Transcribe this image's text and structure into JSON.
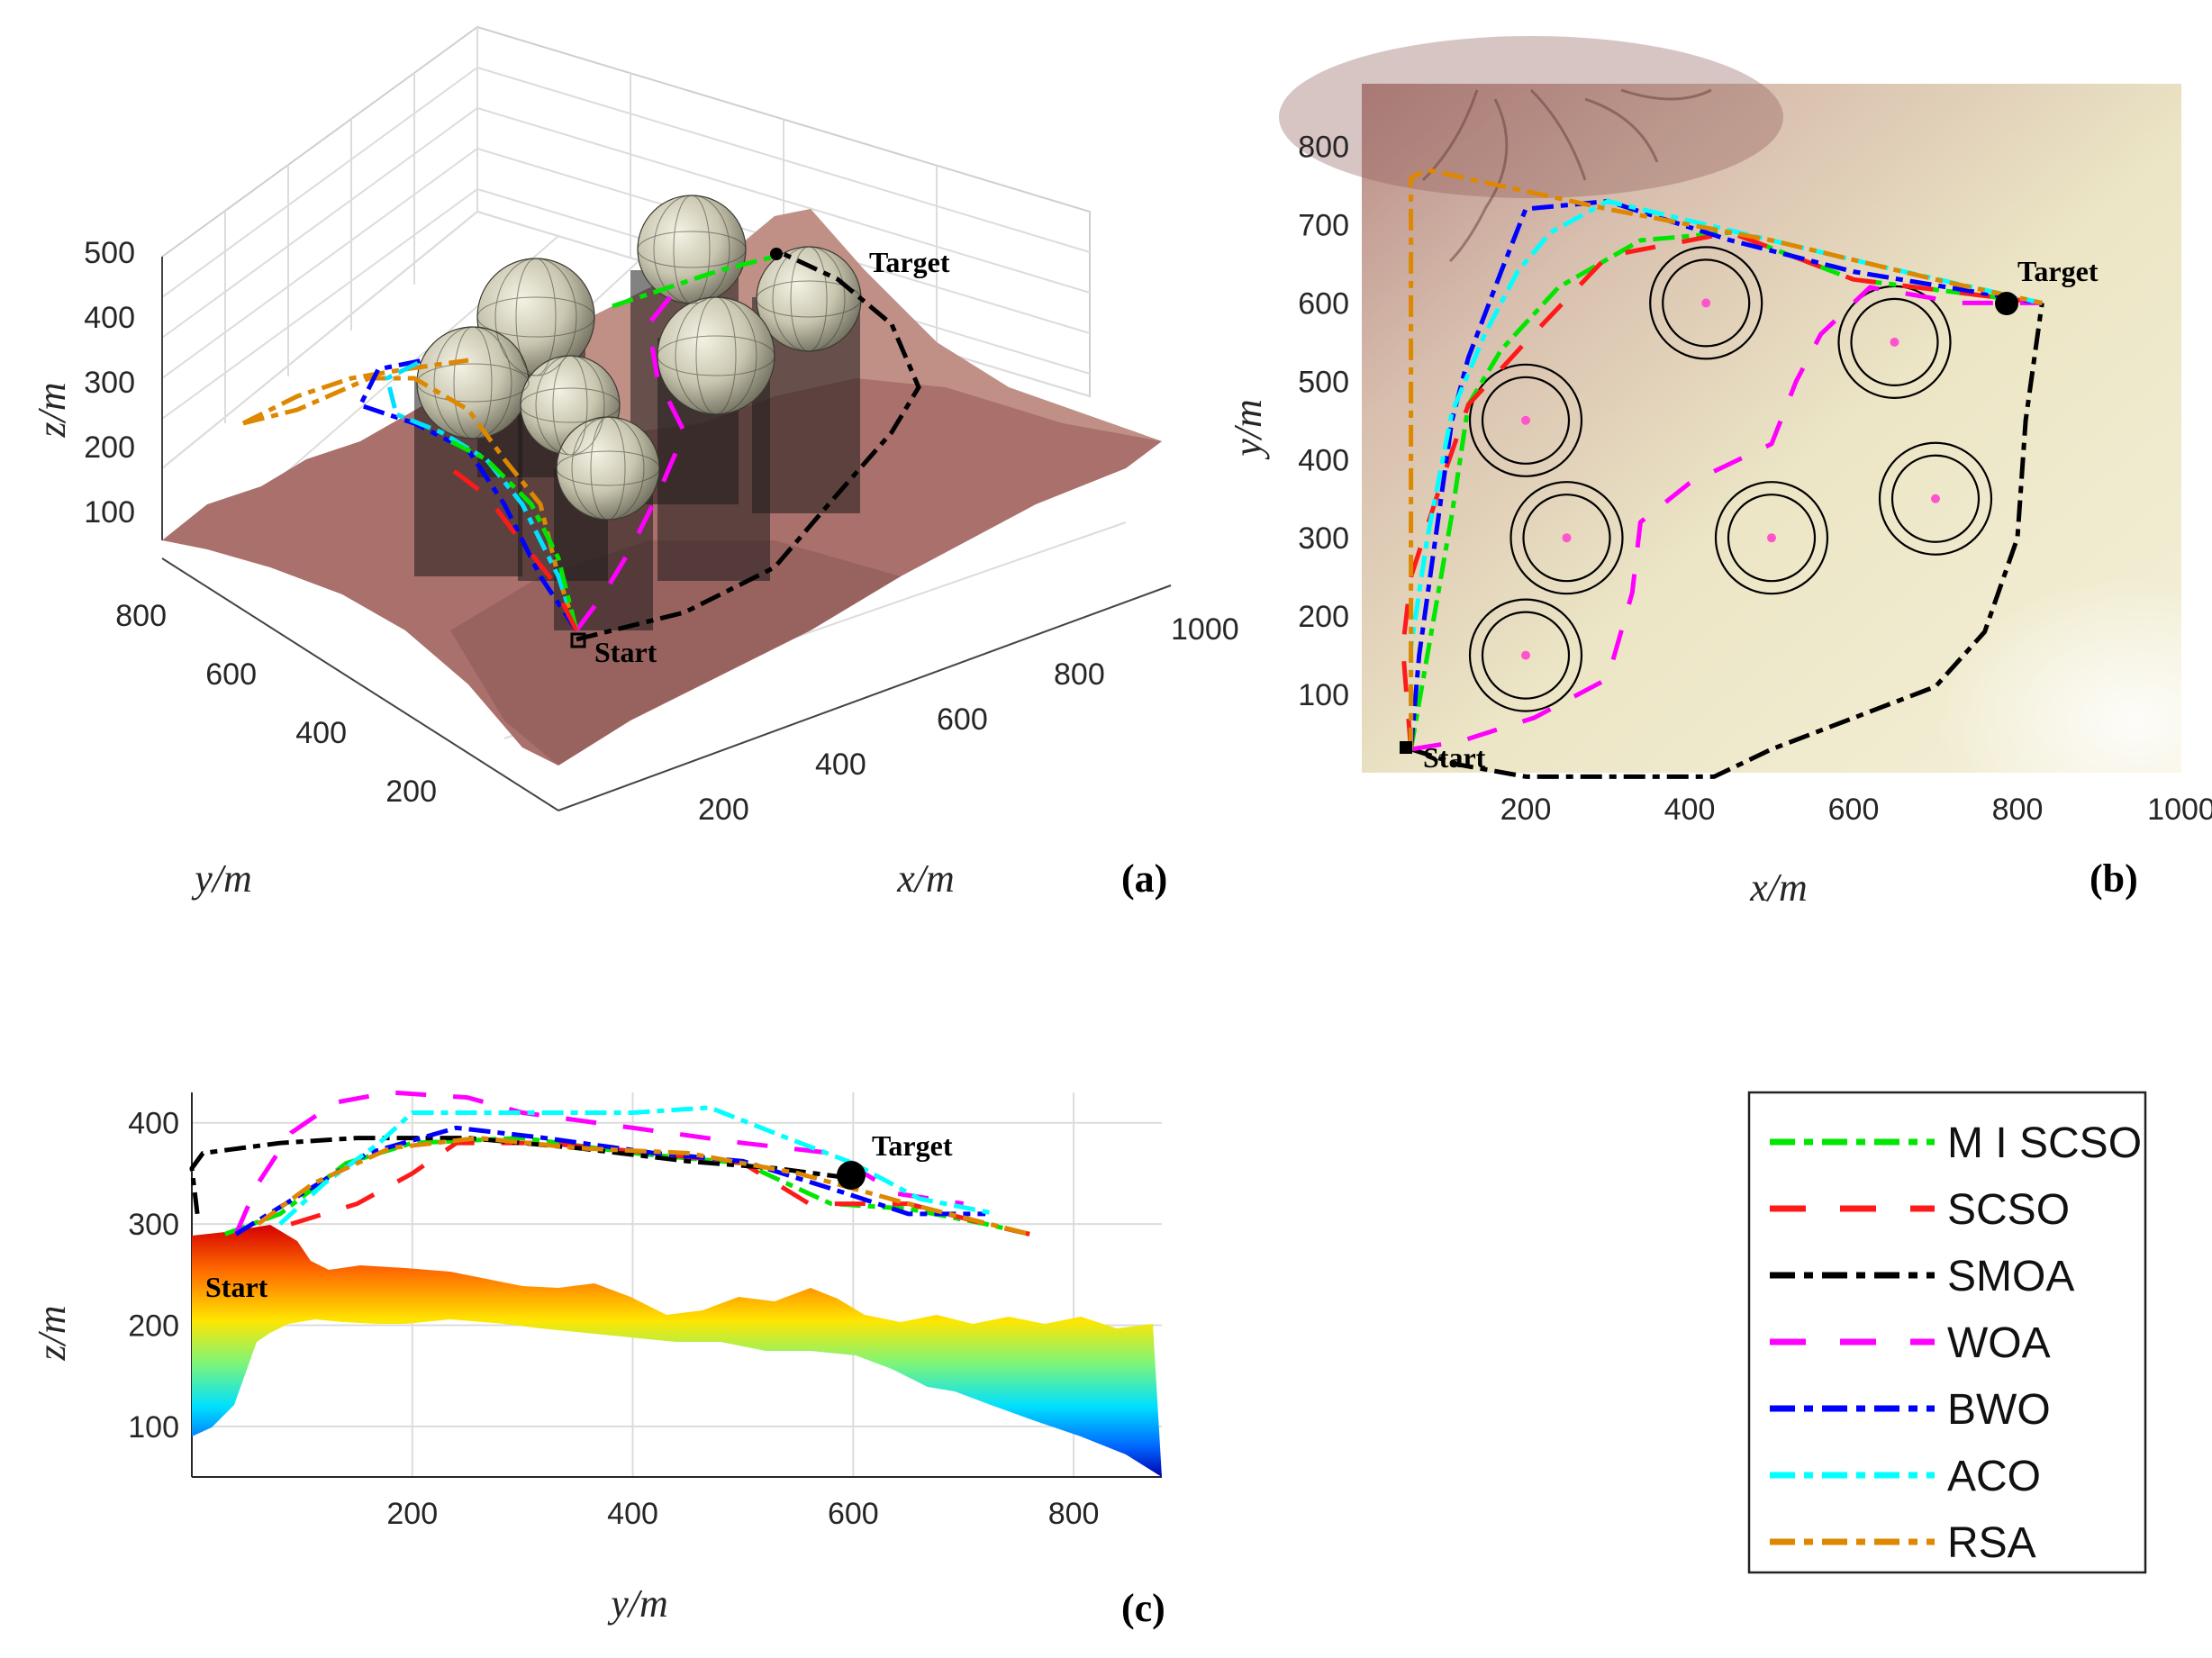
{
  "chart_data": [
    {
      "panel": "(a)",
      "type": "line",
      "view": "3d",
      "xlabel": "x/m",
      "ylabel": "y/m",
      "zlabel": "z/m",
      "x_ticks": [
        "200",
        "400",
        "600",
        "800",
        "1000"
      ],
      "y_ticks": [
        "200",
        "400",
        "600",
        "800"
      ],
      "z_ticks": [
        "100",
        "200",
        "300",
        "400",
        "500"
      ],
      "start_label": "Start",
      "target_label": "Target",
      "obstacles": 7
    },
    {
      "panel": "(b)",
      "type": "line",
      "view": "top",
      "xlabel": "x/m",
      "ylabel": "y/m",
      "xlim": [
        0,
        1000
      ],
      "ylim": [
        0,
        880
      ],
      "x_ticks": [
        200,
        400,
        600,
        800,
        1000
      ],
      "y_ticks": [
        100,
        200,
        300,
        400,
        500,
        600,
        700,
        800
      ],
      "start": [
        60,
        30
      ],
      "target": [
        830,
        600
      ],
      "start_label": "Start",
      "target_label": "Target",
      "obstacles": [
        {
          "x": 200,
          "y": 150
        },
        {
          "x": 250,
          "y": 300
        },
        {
          "x": 200,
          "y": 450
        },
        {
          "x": 420,
          "y": 600
        },
        {
          "x": 500,
          "y": 300
        },
        {
          "x": 650,
          "y": 550
        },
        {
          "x": 700,
          "y": 350
        }
      ],
      "series": [
        {
          "name": "MISCSO",
          "color": "#00e600",
          "points": [
            [
              60,
              30
            ],
            [
              80,
              150
            ],
            [
              110,
              330
            ],
            [
              130,
              470
            ],
            [
              170,
              540
            ],
            [
              240,
              620
            ],
            [
              340,
              680
            ],
            [
              450,
              690
            ],
            [
              600,
              630
            ],
            [
              830,
              600
            ]
          ]
        },
        {
          "name": "SCSO",
          "color": "#ff1a1a",
          "points": [
            [
              60,
              30
            ],
            [
              50,
              160
            ],
            [
              60,
              250
            ],
            [
              100,
              380
            ],
            [
              130,
              470
            ],
            [
              200,
              550
            ],
            [
              300,
              660
            ],
            [
              450,
              690
            ],
            [
              600,
              630
            ],
            [
              830,
              600
            ]
          ]
        },
        {
          "name": "SMOA",
          "color": "#000000",
          "points": [
            [
              60,
              30
            ],
            [
              120,
              10
            ],
            [
              200,
              -5
            ],
            [
              300,
              -5
            ],
            [
              430,
              -5
            ],
            [
              500,
              30
            ],
            [
              600,
              70
            ],
            [
              700,
              110
            ],
            [
              760,
              180
            ],
            [
              800,
              300
            ],
            [
              810,
              450
            ],
            [
              830,
              600
            ]
          ]
        },
        {
          "name": "WOA",
          "color": "#ff00ff",
          "points": [
            [
              60,
              30
            ],
            [
              120,
              40
            ],
            [
              210,
              70
            ],
            [
              300,
              120
            ],
            [
              330,
              230
            ],
            [
              340,
              320
            ],
            [
              400,
              370
            ],
            [
              500,
              420
            ],
            [
              530,
              500
            ],
            [
              560,
              560
            ],
            [
              620,
              620
            ],
            [
              730,
              600
            ],
            [
              830,
              600
            ]
          ]
        },
        {
          "name": "BWO",
          "color": "#0000ff",
          "points": [
            [
              60,
              30
            ],
            [
              70,
              150
            ],
            [
              90,
              300
            ],
            [
              110,
              450
            ],
            [
              130,
              530
            ],
            [
              170,
              640
            ],
            [
              200,
              720
            ],
            [
              300,
              730
            ],
            [
              450,
              680
            ],
            [
              600,
              640
            ],
            [
              830,
              600
            ]
          ]
        },
        {
          "name": "ACO",
          "color": "#00ffff",
          "points": [
            [
              60,
              30
            ],
            [
              60,
              160
            ],
            [
              80,
              300
            ],
            [
              110,
              460
            ],
            [
              150,
              560
            ],
            [
              190,
              640
            ],
            [
              230,
              690
            ],
            [
              300,
              730
            ],
            [
              460,
              690
            ],
            [
              620,
              650
            ],
            [
              830,
              600
            ]
          ]
        },
        {
          "name": "RSA",
          "color": "#dd8800",
          "points": [
            [
              60,
              30
            ],
            [
              60,
              200
            ],
            [
              60,
              400
            ],
            [
              60,
              600
            ],
            [
              60,
              760
            ],
            [
              80,
              770
            ],
            [
              300,
              720
            ],
            [
              500,
              680
            ],
            [
              700,
              630
            ],
            [
              830,
              600
            ]
          ]
        }
      ]
    },
    {
      "panel": "(c)",
      "type": "line",
      "view": "side",
      "xlabel": "y/m",
      "ylabel": "z/m",
      "xlim": [
        0,
        880
      ],
      "ylim": [
        50,
        430
      ],
      "x_ticks": [
        200,
        400,
        600,
        800
      ],
      "y_ticks": [
        100,
        200,
        300,
        400
      ],
      "start": [
        30,
        290
      ],
      "target": [
        600,
        345
      ],
      "start_label": "Start",
      "target_label": "Target",
      "series": [
        {
          "name": "MISCSO",
          "color": "#00e600",
          "points": [
            [
              30,
              290
            ],
            [
              80,
              310
            ],
            [
              140,
              360
            ],
            [
              200,
              380
            ],
            [
              300,
              385
            ],
            [
              400,
              370
            ],
            [
              500,
              360
            ],
            [
              580,
              320
            ],
            [
              650,
              315
            ],
            [
              720,
              300
            ],
            [
              760,
              290
            ]
          ]
        },
        {
          "name": "SCSO",
          "color": "#ff1a1a",
          "points": [
            [
              90,
              300
            ],
            [
              150,
              320
            ],
            [
              200,
              350
            ],
            [
              240,
              380
            ],
            [
              320,
              380
            ],
            [
              420,
              370
            ],
            [
              500,
              360
            ],
            [
              560,
              320
            ],
            [
              650,
              320
            ],
            [
              720,
              300
            ],
            [
              760,
              290
            ]
          ]
        },
        {
          "name": "SMOA",
          "color": "#000000",
          "points": [
            [
              5,
              310
            ],
            [
              0,
              355
            ],
            [
              10,
              370
            ],
            [
              80,
              380
            ],
            [
              150,
              385
            ],
            [
              250,
              385
            ],
            [
              350,
              375
            ],
            [
              450,
              362
            ],
            [
              530,
              355
            ],
            [
              600,
              345
            ]
          ]
        },
        {
          "name": "WOA",
          "color": "#ff00ff",
          "points": [
            [
              40,
              290
            ],
            [
              60,
              340
            ],
            [
              90,
              390
            ],
            [
              130,
              420
            ],
            [
              180,
              430
            ],
            [
              250,
              425
            ],
            [
              300,
              410
            ],
            [
              400,
              395
            ],
            [
              500,
              380
            ],
            [
              580,
              370
            ],
            [
              640,
              330
            ],
            [
              700,
              320
            ]
          ]
        },
        {
          "name": "BWO",
          "color": "#0000ff",
          "points": [
            [
              40,
              290
            ],
            [
              100,
              330
            ],
            [
              160,
              370
            ],
            [
              240,
              395
            ],
            [
              320,
              385
            ],
            [
              420,
              370
            ],
            [
              500,
              362
            ],
            [
              580,
              335
            ],
            [
              650,
              310
            ],
            [
              720,
              310
            ]
          ]
        },
        {
          "name": "ACO",
          "color": "#00ffff",
          "points": [
            [
              80,
              300
            ],
            [
              120,
              340
            ],
            [
              170,
              380
            ],
            [
              200,
              410
            ],
            [
              320,
              410
            ],
            [
              400,
              410
            ],
            [
              470,
              415
            ],
            [
              540,
              385
            ],
            [
              600,
              360
            ],
            [
              660,
              325
            ],
            [
              730,
              310
            ]
          ]
        },
        {
          "name": "RSA",
          "color": "#dd8800",
          "points": [
            [
              60,
              300
            ],
            [
              110,
              340
            ],
            [
              180,
              375
            ],
            [
              260,
              385
            ],
            [
              350,
              375
            ],
            [
              450,
              370
            ],
            [
              550,
              350
            ],
            [
              650,
              320
            ],
            [
              760,
              290
            ]
          ]
        }
      ]
    }
  ],
  "panel_labels": {
    "a": "(a)",
    "b": "(b)",
    "c": "(c)"
  },
  "legend": [
    {
      "name": "M I SCSO",
      "color": "#00e600",
      "dash": "28 10 10 10"
    },
    {
      "name": "SCSO",
      "color": "#ff1a1a",
      "dash": "40 38"
    },
    {
      "name": "SMOA",
      "color": "#000000",
      "dash": "28 10 10 10"
    },
    {
      "name": "WOA",
      "color": "#ff00ff",
      "dash": "40 38"
    },
    {
      "name": "BWO",
      "color": "#0000ff",
      "dash": "28 10 10 10"
    },
    {
      "name": "ACO",
      "color": "#00ffff",
      "dash": "28 10 10 10"
    },
    {
      "name": "RSA",
      "color": "#dd8800",
      "dash": "28 10 10 10"
    }
  ]
}
